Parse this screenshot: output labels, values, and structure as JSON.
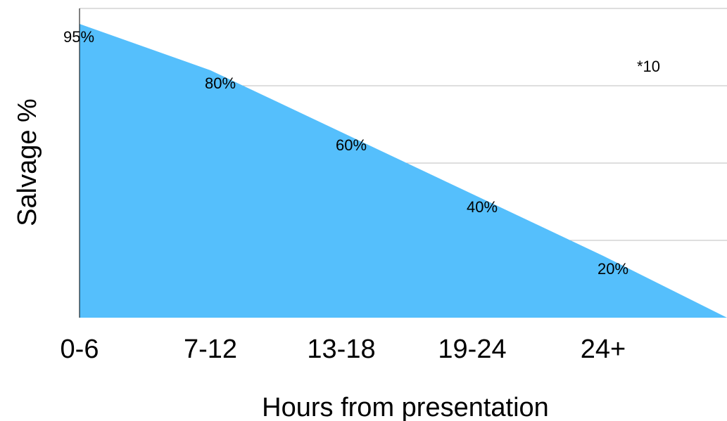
{
  "chart_data": {
    "type": "area",
    "categories": [
      "0-6",
      "7-12",
      "13-18",
      "19-24",
      "24+"
    ],
    "values": [
      95,
      80,
      60,
      40,
      20
    ],
    "end_value": 0,
    "data_labels": [
      "95%",
      "80%",
      "60%",
      "40%",
      "20%"
    ],
    "xlabel": "Hours from presentation",
    "ylabel": "Salvage %",
    "ylim": [
      0,
      100
    ],
    "grid": true,
    "annotation": "*10",
    "colors": {
      "fill": "#55bffc",
      "grid": "#bdbdbd",
      "axis": "#000000"
    }
  }
}
